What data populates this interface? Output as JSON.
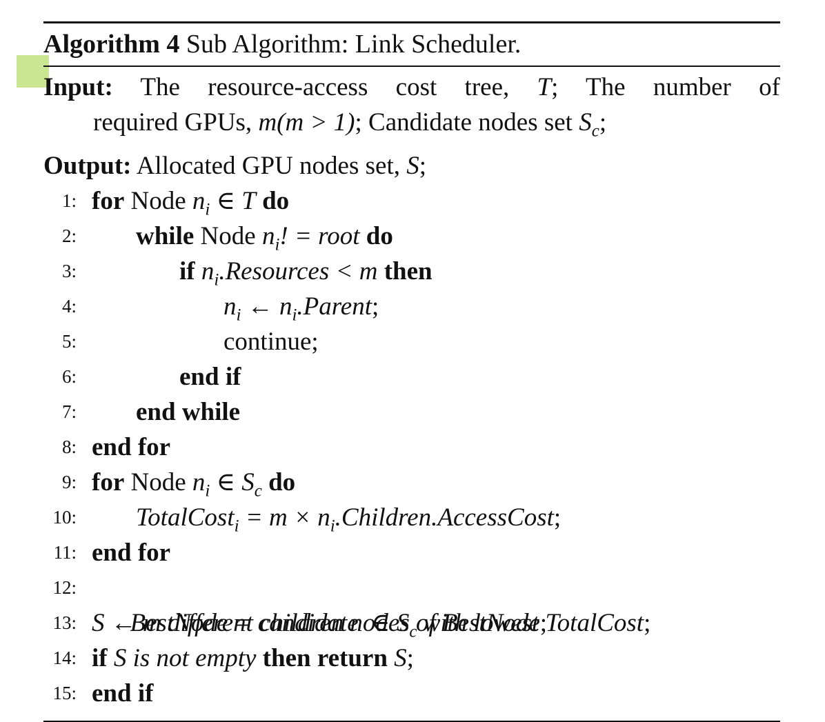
{
  "algorithm": {
    "label": "Algorithm 4",
    "title": "Sub Algorithm: Link Scheduler."
  },
  "input": {
    "label": "Input:",
    "line1_a": "The resource-access cost tree,",
    "line1_T": "T",
    "line1_b": "; The number of",
    "line2_a": "required GPUs,",
    "line2_m": "m(m > 1)",
    "line2_b": "; Candidate nodes set",
    "line2_S": "S",
    "line2_sub": "c",
    "line2_end": ";"
  },
  "output": {
    "label": "Output:",
    "text": "Allocated GPU nodes set,",
    "var": "S",
    "end": ";"
  },
  "lines": [
    {
      "n": "1:"
    },
    {
      "n": "2:"
    },
    {
      "n": "3:"
    },
    {
      "n": "4:"
    },
    {
      "n": "5:"
    },
    {
      "n": "6:"
    },
    {
      "n": "7:"
    },
    {
      "n": "8:"
    },
    {
      "n": "9:"
    },
    {
      "n": "10:"
    },
    {
      "n": "11:"
    },
    {
      "n": "12:"
    },
    {
      "n": "13:"
    },
    {
      "n": "14:"
    },
    {
      "n": "15:"
    }
  ],
  "kw": {
    "for": "for",
    "do": "do",
    "while": "while",
    "if": "if",
    "then": "then",
    "end_if": "end if",
    "end_while": "end while",
    "end_for": "end for",
    "return": "return"
  },
  "text": {
    "node": "Node",
    "continue": "continue;"
  },
  "math": {
    "l1": "n",
    "l1_sub": "i",
    "l1_b": " ∈ T",
    "l2": "n",
    "l2_sub": "i",
    "l2_b": "! = root",
    "l3": "n",
    "l3_sub": "i",
    "l3_b": ".Resources < m",
    "l4a": "n",
    "l4a_sub": "i",
    "l4_arrow": " ← ",
    "l4b": "n",
    "l4b_sub": "i",
    "l4_c": ".Parent",
    "l4_end": ";",
    "l9": "n",
    "l9_sub": "i",
    "l9_b": " ∈ S",
    "l9_sub2": "c",
    "l10a": "TotalCost",
    "l10a_sub": "i",
    "l10_b": " = m × n",
    "l10_sub2": "i",
    "l10_c": ".Children.AccessCost",
    "l10_end": ";",
    "l12": "BestNode = candidate  ∈ S",
    "l12_sub": "c",
    "l12_b": " with lowest TotalCost",
    "l12_end": ";",
    "l13": "S ← m different children nodes of BestNode",
    "l13_end": ";",
    "l14": "S is not empty",
    "l14_var": "S",
    "l14_end": ";"
  }
}
